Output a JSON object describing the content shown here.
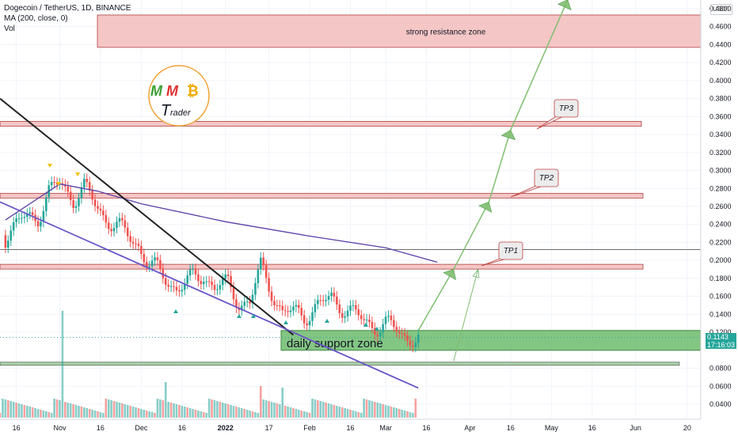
{
  "header": {
    "symbol": "Dogecoin / TetherUS, 1D, BINANCE",
    "ma_label": "MA (200, close, 0)",
    "vol_label": "Vol"
  },
  "price_axis": {
    "unit": "USDT",
    "ticks": [
      "0.4800",
      "0.4600",
      "0.4400",
      "0.4200",
      "0.4000",
      "0.3800",
      "0.3600",
      "0.3400",
      "0.3200",
      "0.3000",
      "0.2800",
      "0.2600",
      "0.2400",
      "0.2200",
      "0.2000",
      "0.1800",
      "0.1600",
      "0.1400",
      "0.1200",
      "0.0800",
      "0.0600",
      "0.0400"
    ]
  },
  "time_axis": {
    "labels": [
      "16",
      "Nov",
      "16",
      "Dec",
      "16",
      "2022",
      "17",
      "Feb",
      "16",
      "Mar",
      "16",
      "Apr",
      "16",
      "May",
      "16",
      "Jun",
      "20"
    ]
  },
  "current_price": {
    "price": "0.1143",
    "countdown": "17:16:03"
  },
  "annotations": {
    "resistance_zone": "strong resistance zone",
    "support_zone": "daily support zone",
    "tp1": "TP1",
    "tp2": "TP2",
    "tp3": "TP3",
    "logo_top": "MM",
    "logo_symbol": "₿",
    "logo_bottom": "Trader"
  },
  "colors": {
    "bull": "#26a69a",
    "bear": "#ef5350",
    "ma": "#5b3fa8",
    "zone_red": "#f5c6c6",
    "zone_green": "#6dbb6d",
    "arrow_green": "#7fbf6f",
    "trend_black": "#222222",
    "trend_purple": "#6a55c8",
    "badge_bg": "#26a69a"
  },
  "chart_data": {
    "type": "candlestick",
    "title": "",
    "y_unit": "USDT",
    "ylim": [
      0.025,
      0.49
    ],
    "x_range": [
      "2021-10-10",
      "2022-06-25"
    ],
    "close_series": [
      [
        "2021-10-12",
        0.228
      ],
      [
        "2021-10-18",
        0.245
      ],
      [
        "2021-10-24",
        0.25
      ],
      [
        "2021-10-28",
        0.275
      ],
      [
        "2021-11-01",
        0.285
      ],
      [
        "2021-11-06",
        0.27
      ],
      [
        "2021-11-10",
        0.28
      ],
      [
        "2021-11-14",
        0.262
      ],
      [
        "2021-11-18",
        0.248
      ],
      [
        "2021-11-24",
        0.232
      ],
      [
        "2021-11-30",
        0.218
      ],
      [
        "2021-12-04",
        0.195
      ],
      [
        "2021-12-08",
        0.185
      ],
      [
        "2021-12-14",
        0.17
      ],
      [
        "2021-12-18",
        0.175
      ],
      [
        "2021-12-24",
        0.185
      ],
      [
        "2021-12-28",
        0.17
      ],
      [
        "2022-01-02",
        0.172
      ],
      [
        "2022-01-06",
        0.155
      ],
      [
        "2022-01-10",
        0.152
      ],
      [
        "2022-01-14",
        0.192
      ],
      [
        "2022-01-18",
        0.168
      ],
      [
        "2022-01-22",
        0.14
      ],
      [
        "2022-01-26",
        0.142
      ],
      [
        "2022-01-30",
        0.14
      ],
      [
        "2022-02-05",
        0.15
      ],
      [
        "2022-02-09",
        0.158
      ],
      [
        "2022-02-13",
        0.15
      ],
      [
        "2022-02-17",
        0.14
      ],
      [
        "2022-02-21",
        0.132
      ],
      [
        "2022-02-25",
        0.128
      ],
      [
        "2022-03-01",
        0.128
      ],
      [
        "2022-03-05",
        0.122
      ],
      [
        "2022-03-09",
        0.115
      ],
      [
        "2022-03-13",
        0.1143
      ]
    ],
    "ma200": [
      [
        "2021-10-12",
        0.245
      ],
      [
        "2021-11-01",
        0.285
      ],
      [
        "2021-11-15",
        0.277
      ],
      [
        "2021-12-01",
        0.263
      ],
      [
        "2022-01-01",
        0.243
      ],
      [
        "2022-02-01",
        0.227
      ],
      [
        "2022-03-01",
        0.214
      ],
      [
        "2022-03-20",
        0.198
      ]
    ],
    "levels": {
      "strong_resistance_zone": [
        0.437,
        0.473
      ],
      "tp3_line": 0.352,
      "tp2_line": 0.272,
      "tp1_line": 0.193,
      "horizontal_line": 0.212,
      "daily_support_zone": [
        0.1,
        0.122
      ],
      "base_line": 0.085
    },
    "trendlines": [
      {
        "name": "descending resistance",
        "from": [
          "2021-10-10",
          0.38
        ],
        "to": [
          "2022-01-26",
          0.117
        ]
      },
      {
        "name": "descending support",
        "from": [
          "2021-10-10",
          0.265
        ],
        "to": [
          "2022-03-13",
          0.058
        ]
      }
    ],
    "projection_arrows": [
      {
        "from": [
          "2022-03-13",
          0.122
        ],
        "to": [
          "2022-03-26",
          0.19
        ]
      },
      {
        "from": [
          "2022-03-26",
          0.19
        ],
        "to": [
          "2022-04-08",
          0.265
        ]
      },
      {
        "from": [
          "2022-04-08",
          0.265
        ],
        "to": [
          "2022-04-16",
          0.345
        ]
      },
      {
        "from": [
          "2022-04-16",
          0.345
        ],
        "to": [
          "2022-05-07",
          0.49
        ]
      },
      {
        "from": [
          "2022-03-26",
          0.088
        ],
        "to": [
          "2022-04-04",
          0.19
        ]
      }
    ],
    "volume_spikes": [
      "2021-11-02",
      "2022-01-14",
      "2022-01-22",
      "2021-12-10"
    ]
  }
}
